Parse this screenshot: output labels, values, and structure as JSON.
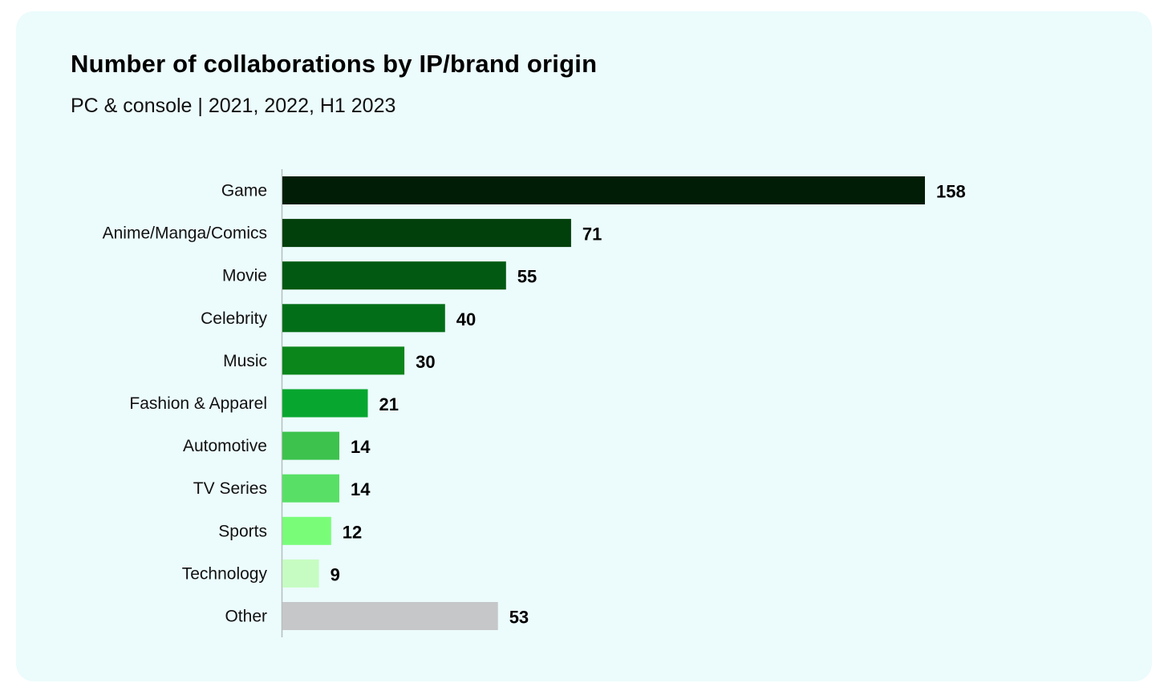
{
  "chart_data": {
    "type": "bar",
    "orientation": "horizontal",
    "title": "Number of collaborations by IP/brand origin",
    "subtitle": "PC & console | 2021, 2022, H1 2023",
    "categories": [
      "Game",
      "Anime/Manga/Comics",
      "Movie",
      "Celebrity",
      "Music",
      "Fashion & Apparel",
      "Automotive",
      "TV Series",
      "Sports",
      "Technology",
      "Other"
    ],
    "values": [
      158,
      71,
      55,
      40,
      30,
      21,
      14,
      14,
      12,
      9,
      53
    ],
    "colors": [
      "#011d06",
      "#013f0b",
      "#015912",
      "#026f18",
      "#0a861a",
      "#07a72f",
      "#3dc24d",
      "#58e066",
      "#79fd79",
      "#c6fcc2",
      "#c5c7c9"
    ],
    "xlabel": "",
    "ylabel": "",
    "xlim": [
      0,
      158
    ],
    "grid": false,
    "legend": "none"
  }
}
